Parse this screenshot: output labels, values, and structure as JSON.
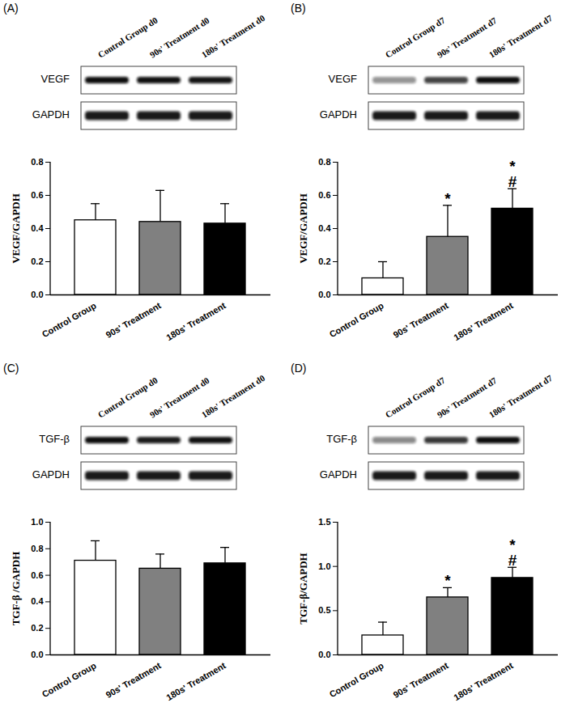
{
  "chart_data": [
    {
      "panel": "(A)",
      "type": "bar",
      "blot": {
        "lanes": [
          "Control Group d0",
          "90s' Treatment d0",
          "180s' Treatment d0"
        ],
        "rows": [
          "VEGF",
          "GAPDH"
        ]
      },
      "categories": [
        "Control Group",
        "90s' Treatment",
        "180s' Treatment"
      ],
      "values": [
        0.45,
        0.44,
        0.43
      ],
      "errors": [
        0.1,
        0.19,
        0.12
      ],
      "significance": [
        [],
        [],
        []
      ],
      "colors": [
        "#ffffff",
        "#808080",
        "#000000"
      ],
      "ylabel": "VEGF/GAPDH",
      "ylim": [
        0,
        0.8
      ],
      "yticks": [
        {
          "value": 0,
          "label": "0.0"
        },
        0.2,
        0.4,
        0.6,
        0.8
      ]
    },
    {
      "panel": "(B)",
      "type": "bar",
      "blot": {
        "lanes": [
          "Control Group d7",
          "90s' Treatment d7",
          "180s' Treatment d7"
        ],
        "rows": [
          "VEGF",
          "GAPDH"
        ]
      },
      "categories": [
        "Control Group",
        "90s' Treatment",
        "180s' Treatment"
      ],
      "values": [
        0.1,
        0.35,
        0.52
      ],
      "errors": [
        0.1,
        0.19,
        0.12
      ],
      "significance": [
        [],
        [
          "*"
        ],
        [
          "*",
          "#"
        ]
      ],
      "colors": [
        "#ffffff",
        "#808080",
        "#000000"
      ],
      "ylabel": "VEGF/GAPDH",
      "ylim": [
        0,
        0.8
      ],
      "yticks": [
        {
          "value": 0,
          "label": "0.0"
        },
        0.2,
        0.4,
        0.6,
        0.8
      ]
    },
    {
      "panel": "(C)",
      "type": "bar",
      "blot": {
        "lanes": [
          "Control Group d0",
          "90s' Treatment d0",
          "180s' Treatment d0"
        ],
        "rows": [
          "TGF-β",
          "GAPDH"
        ]
      },
      "categories": [
        "Control Group",
        "90s' Treatment",
        "180s' Treatment"
      ],
      "values": [
        0.71,
        0.65,
        0.69
      ],
      "errors": [
        0.15,
        0.11,
        0.12
      ],
      "significance": [
        [],
        [],
        []
      ],
      "colors": [
        "#ffffff",
        "#808080",
        "#000000"
      ],
      "ylabel": "TGF-β /GAPDH",
      "ylim": [
        0,
        1.0
      ],
      "yticks": [
        {
          "value": 0,
          "label": "0.0"
        },
        0.2,
        0.4,
        0.6,
        0.8,
        {
          "value": 1,
          "label": "1.0"
        }
      ]
    },
    {
      "panel": "(D)",
      "type": "bar",
      "blot": {
        "lanes": [
          "Control Group d7",
          "90s' Treatment d7",
          "180s' Treatment d7"
        ],
        "rows": [
          "TGF-β",
          "GAPDH"
        ]
      },
      "categories": [
        "Control Group",
        "90s' Treatment",
        "180s' Treatment"
      ],
      "values": [
        0.22,
        0.65,
        0.87
      ],
      "errors": [
        0.15,
        0.11,
        0.12
      ],
      "significance": [
        [],
        [
          "*"
        ],
        [
          "*",
          "#"
        ]
      ],
      "colors": [
        "#ffffff",
        "#808080",
        "#000000"
      ],
      "ylabel": "TGF-β/GAPDH",
      "ylim": [
        0,
        1.5
      ],
      "yticks": [
        {
          "value": 0,
          "label": "0.0"
        },
        0.5,
        {
          "value": 1,
          "label": "1.0"
        },
        1.5
      ]
    }
  ]
}
